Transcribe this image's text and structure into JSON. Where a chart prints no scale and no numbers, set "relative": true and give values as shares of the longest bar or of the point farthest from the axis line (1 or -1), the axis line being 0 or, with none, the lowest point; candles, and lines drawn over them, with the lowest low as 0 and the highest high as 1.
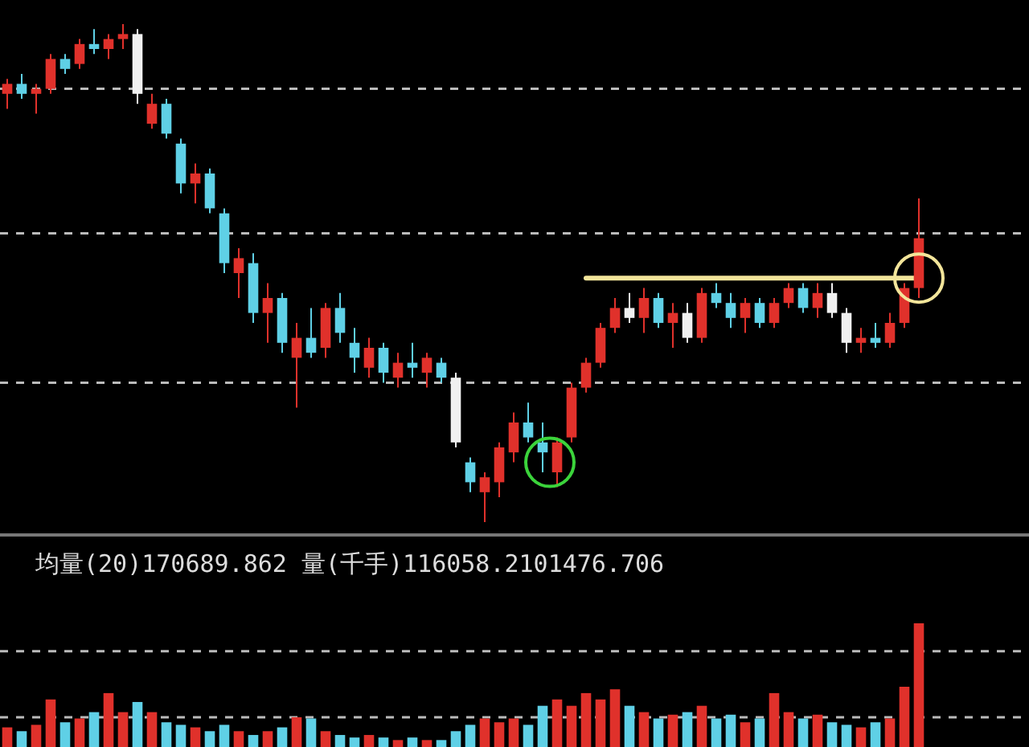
{
  "chart_data": [
    {
      "type": "candlestick",
      "relative": true,
      "categories": [
        null,
        null,
        null,
        null,
        null,
        null,
        null,
        null,
        null,
        null,
        null,
        null,
        null,
        null,
        null,
        null,
        null,
        null,
        null,
        null,
        null,
        null,
        null,
        null,
        null,
        null,
        null,
        null,
        null,
        null,
        null,
        null,
        null,
        null,
        null,
        null,
        null,
        null,
        null,
        null,
        null,
        null,
        null,
        null,
        null,
        null,
        null,
        null,
        null,
        null,
        null,
        null,
        null,
        null,
        null,
        null,
        null,
        null,
        null,
        null,
        null,
        null,
        null,
        null
      ],
      "colors": [
        "#e0312b",
        "#5fd0e6",
        "#e0312b",
        "#e0312b",
        "#5fd0e6",
        "#e0312b",
        "#5fd0e6",
        "#e0312b",
        "#e0312b",
        "#f0f0f0",
        "#e0312b",
        "#5fd0e6",
        "#5fd0e6",
        "#e0312b",
        "#5fd0e6",
        "#5fd0e6",
        "#e0312b",
        "#5fd0e6",
        "#e0312b",
        "#5fd0e6",
        "#e0312b",
        "#5fd0e6",
        "#e0312b",
        "#5fd0e6",
        "#5fd0e6",
        "#e0312b",
        "#5fd0e6",
        "#e0312b",
        "#5fd0e6",
        "#e0312b",
        "#5fd0e6",
        "#f0f0f0",
        "#5fd0e6",
        "#e0312b",
        "#e0312b",
        "#e0312b",
        "#5fd0e6",
        "#5fd0e6",
        "#e0312b",
        "#e0312b",
        "#e0312b",
        "#e0312b",
        "#e0312b",
        "#f0f0f0",
        "#e0312b",
        "#5fd0e6",
        "#e0312b",
        "#f0f0f0",
        "#e0312b",
        "#5fd0e6",
        "#5fd0e6",
        "#e0312b",
        "#5fd0e6",
        "#e0312b",
        "#e0312b",
        "#5fd0e6",
        "#e0312b",
        "#f0f0f0",
        "#f0f0f0",
        "#e0312b",
        "#5fd0e6",
        "#e0312b",
        "#e0312b",
        "#e0312b"
      ],
      "ohlc": [
        [
          0.86,
          0.89,
          0.83,
          0.88
        ],
        [
          0.88,
          0.9,
          0.85,
          0.86
        ],
        [
          0.86,
          0.88,
          0.82,
          0.87
        ],
        [
          0.87,
          0.94,
          0.86,
          0.93
        ],
        [
          0.93,
          0.94,
          0.9,
          0.91
        ],
        [
          0.92,
          0.97,
          0.91,
          0.96
        ],
        [
          0.96,
          0.99,
          0.94,
          0.95
        ],
        [
          0.95,
          0.98,
          0.93,
          0.97
        ],
        [
          0.97,
          1.0,
          0.95,
          0.98
        ],
        [
          0.98,
          0.99,
          0.84,
          0.86
        ],
        [
          0.8,
          0.86,
          0.79,
          0.84
        ],
        [
          0.84,
          0.85,
          0.77,
          0.78
        ],
        [
          0.76,
          0.77,
          0.66,
          0.68
        ],
        [
          0.68,
          0.72,
          0.64,
          0.7
        ],
        [
          0.7,
          0.71,
          0.62,
          0.63
        ],
        [
          0.62,
          0.63,
          0.5,
          0.52
        ],
        [
          0.5,
          0.55,
          0.45,
          0.53
        ],
        [
          0.52,
          0.54,
          0.4,
          0.42
        ],
        [
          0.42,
          0.48,
          0.36,
          0.45
        ],
        [
          0.45,
          0.46,
          0.34,
          0.36
        ],
        [
          0.33,
          0.4,
          0.23,
          0.37
        ],
        [
          0.37,
          0.43,
          0.33,
          0.34
        ],
        [
          0.35,
          0.44,
          0.33,
          0.43
        ],
        [
          0.43,
          0.46,
          0.36,
          0.38
        ],
        [
          0.36,
          0.39,
          0.3,
          0.33
        ],
        [
          0.31,
          0.37,
          0.29,
          0.35
        ],
        [
          0.35,
          0.36,
          0.28,
          0.3
        ],
        [
          0.29,
          0.34,
          0.27,
          0.32
        ],
        [
          0.32,
          0.36,
          0.29,
          0.31
        ],
        [
          0.3,
          0.34,
          0.27,
          0.33
        ],
        [
          0.32,
          0.33,
          0.28,
          0.29
        ],
        [
          0.29,
          0.3,
          0.15,
          0.16
        ],
        [
          0.12,
          0.13,
          0.06,
          0.08
        ],
        [
          0.06,
          0.1,
          0.0,
          0.09
        ],
        [
          0.08,
          0.16,
          0.05,
          0.15
        ],
        [
          0.14,
          0.22,
          0.12,
          0.2
        ],
        [
          0.2,
          0.24,
          0.16,
          0.17
        ],
        [
          0.16,
          0.2,
          0.1,
          0.14
        ],
        [
          0.1,
          0.17,
          0.07,
          0.16
        ],
        [
          0.17,
          0.28,
          0.16,
          0.27
        ],
        [
          0.27,
          0.33,
          0.26,
          0.32
        ],
        [
          0.32,
          0.4,
          0.31,
          0.39
        ],
        [
          0.39,
          0.45,
          0.38,
          0.43
        ],
        [
          0.43,
          0.46,
          0.4,
          0.41
        ],
        [
          0.41,
          0.47,
          0.38,
          0.45
        ],
        [
          0.45,
          0.46,
          0.39,
          0.4
        ],
        [
          0.4,
          0.44,
          0.35,
          0.42
        ],
        [
          0.42,
          0.44,
          0.36,
          0.37
        ],
        [
          0.37,
          0.47,
          0.36,
          0.46
        ],
        [
          0.46,
          0.48,
          0.43,
          0.44
        ],
        [
          0.44,
          0.46,
          0.39,
          0.41
        ],
        [
          0.41,
          0.45,
          0.38,
          0.44
        ],
        [
          0.44,
          0.45,
          0.39,
          0.4
        ],
        [
          0.4,
          0.45,
          0.39,
          0.44
        ],
        [
          0.44,
          0.48,
          0.43,
          0.47
        ],
        [
          0.47,
          0.48,
          0.42,
          0.43
        ],
        [
          0.43,
          0.48,
          0.41,
          0.46
        ],
        [
          0.46,
          0.48,
          0.41,
          0.42
        ],
        [
          0.42,
          0.43,
          0.34,
          0.36
        ],
        [
          0.36,
          0.39,
          0.34,
          0.37
        ],
        [
          0.37,
          0.4,
          0.35,
          0.36
        ],
        [
          0.36,
          0.42,
          0.35,
          0.4
        ],
        [
          0.4,
          0.48,
          0.39,
          0.47
        ],
        [
          0.47,
          0.65,
          0.45,
          0.57
        ]
      ],
      "series": [
        {
          "type": "line",
          "color": "#f3e59a",
          "values": [
            null,
            null,
            null,
            null,
            null,
            null,
            null,
            null,
            null,
            null,
            null,
            null,
            null,
            null,
            null,
            null,
            null,
            null,
            null,
            null,
            null,
            null,
            null,
            null,
            null,
            null,
            null,
            null,
            null,
            null,
            null,
            null,
            null,
            null,
            null,
            null,
            null,
            null,
            null,
            null,
            0.49,
            0.49,
            0.49,
            0.49,
            0.49,
            0.49,
            0.49,
            0.49,
            0.49,
            0.49,
            0.49,
            0.49,
            0.49,
            0.49,
            0.49,
            0.49,
            0.49,
            0.49,
            0.49,
            0.49,
            0.49,
            0.49,
            0.49,
            0.49
          ]
        }
      ],
      "ref_lines": [
        {
          "axis": "y",
          "value": 0.87,
          "color": "#bbbbbb",
          "line_style": "dashed"
        },
        {
          "axis": "y",
          "value": 0.58,
          "color": "#bbbbbb",
          "line_style": "dashed"
        },
        {
          "axis": "y",
          "value": 0.28,
          "color": "#bbbbbb",
          "line_style": "dashed"
        }
      ]
    },
    {
      "type": "bar",
      "relative": true,
      "stacked": true,
      "title": "均量(20)170689.862  量(千手)116058.2101476.706",
      "categories": [
        null,
        null,
        null,
        null,
        null,
        null,
        null,
        null,
        null,
        null,
        null,
        null,
        null,
        null,
        null,
        null,
        null,
        null,
        null,
        null,
        null,
        null,
        null,
        null,
        null,
        null,
        null,
        null,
        null,
        null,
        null,
        null,
        null,
        null,
        null,
        null,
        null,
        null,
        null,
        null,
        null,
        null,
        null,
        null,
        null,
        null,
        null,
        null,
        null,
        null,
        null,
        null,
        null,
        null,
        null,
        null,
        null,
        null,
        null,
        null,
        null,
        null,
        null,
        null
      ],
      "series": [
        {
          "color": "#e0312b",
          "values": [
            0.18,
            null,
            0.2,
            0.4,
            null,
            0.25,
            null,
            0.45,
            0.3,
            null,
            0.3,
            null,
            null,
            0.18,
            null,
            null,
            0.15,
            null,
            0.15,
            null,
            0.26,
            null,
            0.15,
            null,
            null,
            0.12,
            null,
            0.08,
            null,
            0.08,
            null,
            null,
            null,
            0.25,
            0.22,
            0.25,
            null,
            null,
            0.4,
            0.35,
            0.45,
            0.4,
            0.48,
            null,
            0.3,
            null,
            0.28,
            null,
            0.35,
            null,
            null,
            0.22,
            null,
            0.45,
            0.3,
            null,
            0.28,
            null,
            null,
            0.18,
            null,
            0.25,
            0.5,
            1.0
          ]
        },
        {
          "color": "#5fd0e6",
          "values": [
            null,
            0.15,
            null,
            null,
            0.22,
            null,
            0.3,
            null,
            null,
            0.38,
            null,
            0.22,
            0.2,
            null,
            0.15,
            0.2,
            null,
            0.12,
            null,
            0.18,
            null,
            0.25,
            null,
            0.12,
            0.1,
            null,
            0.1,
            null,
            0.1,
            null,
            0.08,
            0.15,
            0.2,
            null,
            null,
            null,
            0.2,
            0.35,
            null,
            null,
            null,
            null,
            null,
            0.35,
            null,
            0.25,
            null,
            0.3,
            null,
            0.25,
            0.28,
            null,
            0.25,
            null,
            null,
            0.25,
            null,
            0.22,
            0.2,
            null,
            0.22,
            null,
            null,
            null
          ]
        }
      ],
      "ref_lines": [
        {
          "axis": "y",
          "value": 0.78,
          "color": "#bbbbbb",
          "line_style": "dashed"
        },
        {
          "axis": "y",
          "value": 0.26,
          "color": "#bbbbbb",
          "line_style": "dashed"
        }
      ]
    }
  ]
}
